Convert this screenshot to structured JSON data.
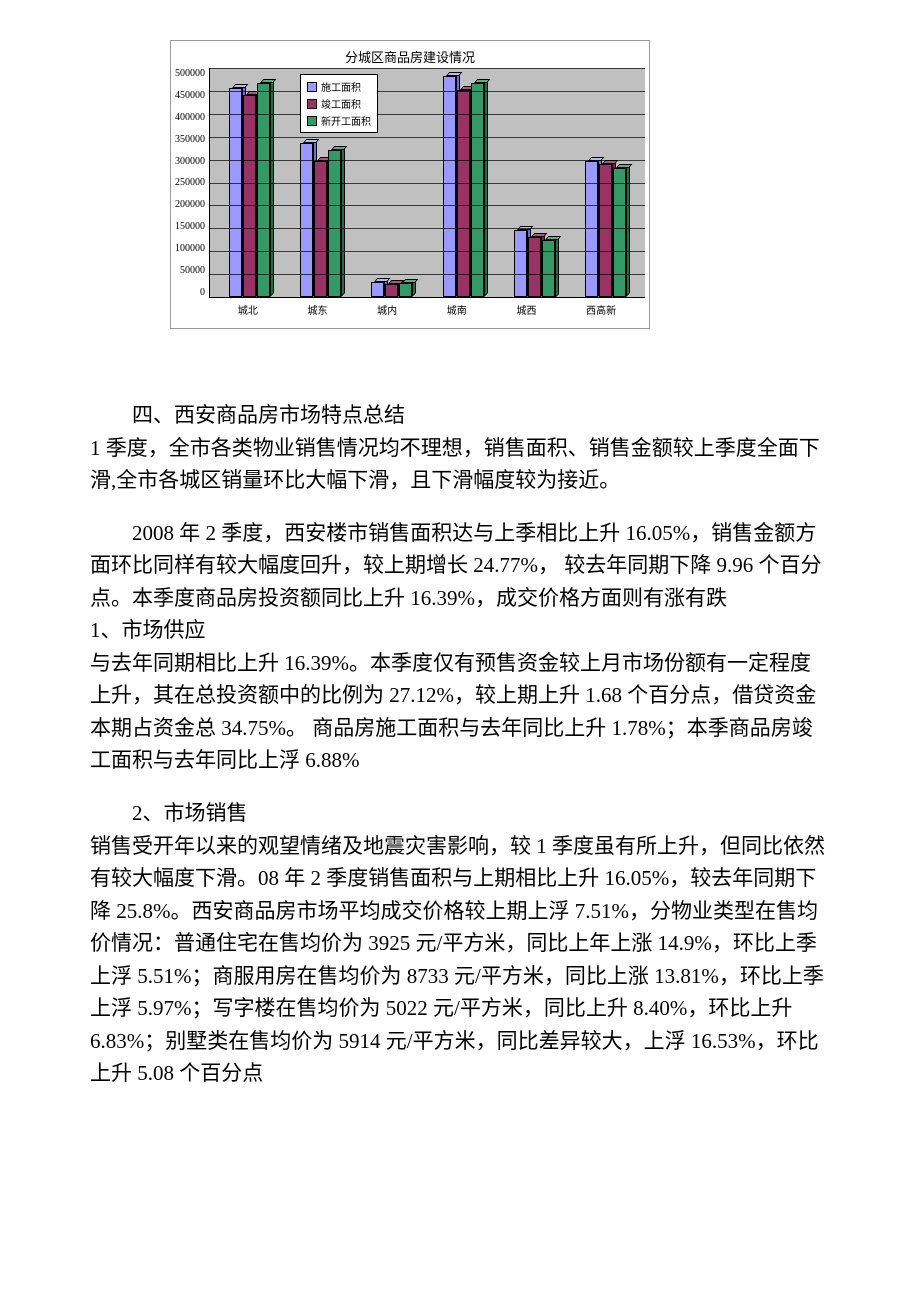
{
  "chart": {
    "type": "bar",
    "title": "分城区商品房建设情况",
    "title_fontsize": 13,
    "categories": [
      "城北",
      "城东",
      "城内",
      "城南",
      "城西",
      "西高新"
    ],
    "series": [
      {
        "name": "施工面积",
        "color": "#9999ff",
        "side_color": "#7070cc",
        "top_color": "#b8b8ff",
        "values": [
          455000,
          335000,
          32000,
          480000,
          145000,
          295000
        ]
      },
      {
        "name": "竣工面积",
        "color": "#993366",
        "side_color": "#6b2446",
        "top_color": "#b35580",
        "values": [
          440000,
          295000,
          28000,
          450000,
          130000,
          290000
        ]
      },
      {
        "name": "新开工面积",
        "color": "#339966",
        "side_color": "#246b46",
        "top_color": "#55b380",
        "values": [
          465000,
          320000,
          30000,
          465000,
          125000,
          280000
        ]
      }
    ],
    "ylim_max": 500000,
    "ytick_step": 50000,
    "yticks": [
      "500000",
      "450000",
      "400000",
      "350000",
      "300000",
      "250000",
      "200000",
      "150000",
      "100000",
      "50000",
      "0"
    ],
    "background_color": "#c0c0c0",
    "legend_bg": "#ffffff"
  },
  "text": {
    "heading4": "四、西安商品房市场特点总结",
    "q1_para": "1 季度，全市各类物业销售情况均不理想，销售面积、销售金额较上季度全面下滑,全市各城区销量环比大幅下滑，且下滑幅度较为接近。",
    "q2_para": "2008 年 2 季度，西安楼市销售面积达与上季相比上升 16.05%，销售金额方面环比同样有较大幅度回升，较上期增长 24.77%， 较去年同期下降 9.96 个百分点。本季度商品房投资额同比上升 16.39%，成交价格方面则有涨有跌",
    "supply_h": "1、市场供应",
    "supply_p": "与去年同期相比上升 16.39%。本季度仅有预售资金较上月市场份额有一定程度上升，其在总投资额中的比例为 27.12%，较上期上升 1.68 个百分点，借贷资金本期占资金总 34.75%。 商品房施工面积与去年同比上升 1.78%；本季商品房竣工面积与去年同比上浮 6.88%",
    "sales_h": "2、市场销售",
    "sales_p": "销售受开年以来的观望情绪及地震灾害影响，较 1 季度虽有所上升，但同比依然有较大幅度下滑。08 年 2 季度销售面积与上期相比上升 16.05%，较去年同期下降 25.8%。西安商品房市场平均成交价格较上期上浮 7.51%，分物业类型在售均价情况：普通住宅在售均价为 3925 元/平方米，同比上年上涨 14.9%，环比上季上浮 5.51%；商服用房在售均价为 8733 元/平方米，同比上涨 13.81%，环比上季上浮 5.97%；写字楼在售均价为 5022 元/平方米，同比上升 8.40%，环比上升 6.83%；别墅类在售均价为 5914 元/平方米，同比差异较大，上浮 16.53%，环比上升 5.08 个百分点"
  }
}
